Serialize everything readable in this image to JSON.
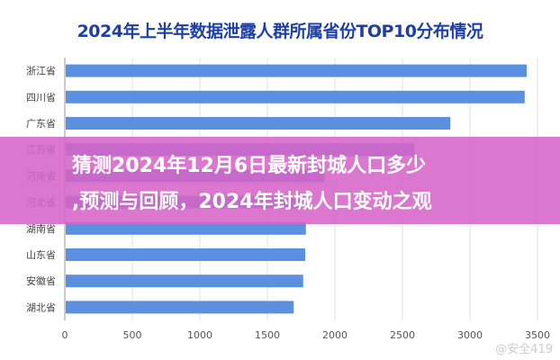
{
  "chart_data": {
    "type": "bar",
    "orientation": "horizontal",
    "title": "2024年上半年数据泄露人群所属省份TOP10分布情况",
    "categories": [
      "浙江省",
      "四川省",
      "广东省",
      "江苏省",
      "河南省",
      "河北省",
      "湖南省",
      "山东省",
      "安徽省",
      "湖北省"
    ],
    "values": [
      3420,
      3405,
      2855,
      2590,
      1925,
      1800,
      1785,
      1780,
      1765,
      1695
    ],
    "xlim": [
      0,
      3500
    ],
    "xticks": [
      "0",
      "500",
      "1000",
      "1500",
      "2000",
      "2500",
      "3000",
      "3500"
    ],
    "grid": true,
    "bar_color": "#5b8fdf"
  },
  "overlay": {
    "line1": "猜测2024年12月6日最新封城人口多少",
    "line2": ",预测与回顾，2024年封城人口变动之观"
  },
  "watermark": "@安全419"
}
